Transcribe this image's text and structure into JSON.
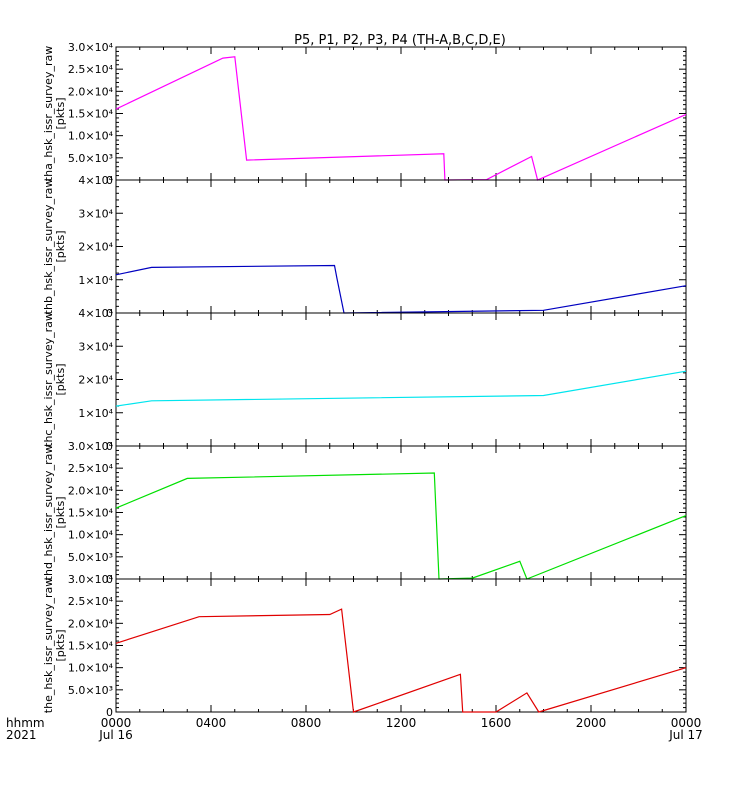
{
  "chart_data": {
    "type": "line",
    "title": "P5, P1, P2, P3, P4 (TH-A,B,C,D,E)",
    "time_axis": {
      "row_label_1": "hhmm",
      "row_label_2": "2021",
      "range_hours": [
        0,
        24
      ],
      "ticks": [
        {
          "t": 0,
          "label": "0000",
          "sub": "Jul 16"
        },
        {
          "t": 4,
          "label": "0400",
          "sub": ""
        },
        {
          "t": 8,
          "label": "0800",
          "sub": ""
        },
        {
          "t": 12,
          "label": "1200",
          "sub": ""
        },
        {
          "t": 16,
          "label": "1600",
          "sub": ""
        },
        {
          "t": 20,
          "label": "2000",
          "sub": ""
        },
        {
          "t": 24,
          "label": "0000",
          "sub": "Jul 17"
        }
      ]
    },
    "panels": [
      {
        "ylabel": "tha_hsk_issr_survey_raw",
        "unit": "[pkts]",
        "color": "#ff00ff",
        "ylim": [
          0,
          30000
        ],
        "yticks": [
          {
            "v": 0,
            "label": "0"
          },
          {
            "v": 5000,
            "label": "5.0×10³"
          },
          {
            "v": 10000,
            "label": "1.0×10⁴"
          },
          {
            "v": 15000,
            "label": "1.5×10⁴"
          },
          {
            "v": 20000,
            "label": "2.0×10⁴"
          },
          {
            "v": 25000,
            "label": "2.5×10⁴"
          },
          {
            "v": 30000,
            "label": "3.0×10⁴"
          }
        ],
        "x": [
          0,
          4.5,
          5.0,
          5.5,
          13.8,
          13.85,
          15.6,
          17.5,
          17.75,
          24
        ],
        "y": [
          16000,
          27500,
          27800,
          4500,
          5900,
          0,
          100,
          5300,
          0,
          14800
        ]
      },
      {
        "ylabel": "thb_hsk_issr_survey_raw",
        "unit": "[pkts]",
        "color": "#0000c0",
        "ylim": [
          0,
          40000
        ],
        "yticks": [
          {
            "v": 0,
            "label": "0"
          },
          {
            "v": 10000,
            "label": "1×10⁴"
          },
          {
            "v": 20000,
            "label": "2×10⁴"
          },
          {
            "v": 30000,
            "label": "3×10⁴"
          },
          {
            "v": 40000,
            "label": "4×10⁴"
          }
        ],
        "x": [
          0,
          1.5,
          9.2,
          9.3,
          9.6,
          18,
          24
        ],
        "y": [
          11500,
          13700,
          14300,
          10500,
          0,
          800,
          8200
        ]
      },
      {
        "ylabel": "thc_hsk_issr_survey_raw",
        "unit": "[pkts]",
        "color": "#00e5ee",
        "ylim": [
          0,
          40000
        ],
        "yticks": [
          {
            "v": 0,
            "label": "0"
          },
          {
            "v": 10000,
            "label": "1×10⁴"
          },
          {
            "v": 20000,
            "label": "2×10⁴"
          },
          {
            "v": 30000,
            "label": "3×10⁴"
          },
          {
            "v": 40000,
            "label": "4×10⁴"
          }
        ],
        "x": [
          0,
          1.5,
          18,
          24
        ],
        "y": [
          12000,
          13600,
          15200,
          22500
        ]
      },
      {
        "ylabel": "thd_hsk_issr_survey_raw",
        "unit": "[pkts]",
        "color": "#00e000",
        "ylim": [
          0,
          30000
        ],
        "yticks": [
          {
            "v": 0,
            "label": "0"
          },
          {
            "v": 5000,
            "label": "5.0×10³"
          },
          {
            "v": 10000,
            "label": "1.0×10⁴"
          },
          {
            "v": 15000,
            "label": "1.5×10⁴"
          },
          {
            "v": 20000,
            "label": "2.0×10⁴"
          },
          {
            "v": 25000,
            "label": "2.5×10⁴"
          },
          {
            "v": 30000,
            "label": "3.0×10⁴"
          }
        ],
        "x": [
          0,
          3.0,
          13.4,
          13.6,
          15.0,
          17.0,
          17.3,
          24
        ],
        "y": [
          16000,
          22700,
          23900,
          0,
          200,
          4000,
          0,
          14300
        ]
      },
      {
        "ylabel": "the_hsk_issr_survey_raw",
        "unit": "[pkts]",
        "color": "#e00000",
        "ylim": [
          0,
          30000
        ],
        "yticks": [
          {
            "v": 0,
            "label": "0"
          },
          {
            "v": 5000,
            "label": "5.0×10³"
          },
          {
            "v": 10000,
            "label": "1.0×10⁴"
          },
          {
            "v": 15000,
            "label": "1.5×10⁴"
          },
          {
            "v": 20000,
            "label": "2.0×10⁴"
          },
          {
            "v": 25000,
            "label": "2.5×10⁴"
          },
          {
            "v": 30000,
            "label": "3.0×10⁴"
          }
        ],
        "x": [
          0,
          3.5,
          9.0,
          9.5,
          10.0,
          14.5,
          14.6,
          16.0,
          17.3,
          17.8,
          24
        ],
        "y": [
          15500,
          21500,
          22000,
          23200,
          0,
          8500,
          0,
          0,
          4300,
          0,
          10000
        ]
      }
    ]
  }
}
